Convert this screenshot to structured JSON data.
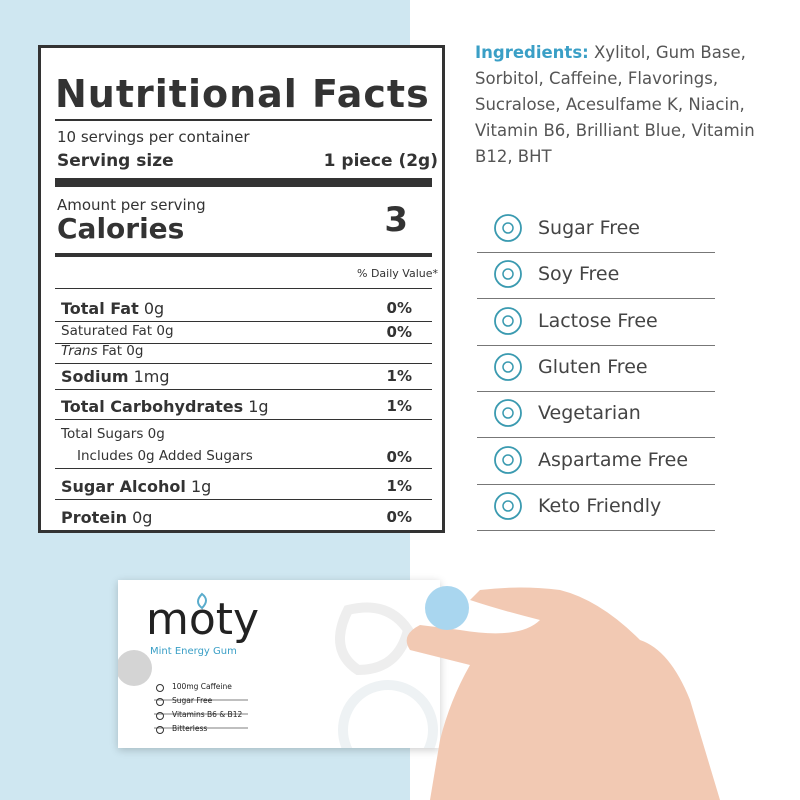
{
  "nutrition": {
    "title": "Nutritional Facts",
    "servings": "10 servings per container",
    "serving_size": {
      "label": "Serving size",
      "value": "1 piece (2g)"
    },
    "amount_per_serving": "Amount per serving",
    "calories": {
      "label": "Calories",
      "value": "3"
    },
    "daily_value_header": "% Daily Value*",
    "rows": [
      {
        "name": "Total Fat",
        "amount": "0g",
        "dv": "0%"
      },
      {
        "name": "Saturated Fat",
        "amount": "0g",
        "dv": "0%"
      },
      {
        "name": "Trans",
        "amount": "Fat 0g"
      },
      {
        "name": "Sodium",
        "amount": "1mg",
        "dv": "1%"
      },
      {
        "name": "Total Carbohydrates",
        "amount": "1g",
        "dv": "1%"
      },
      {
        "name": "Total Sugars",
        "amount": "0g"
      },
      {
        "name": "Includes 0g Added Sugars",
        "dv": "0%"
      },
      {
        "name": "Sugar Alcohol",
        "amount": "1g",
        "dv": "1%"
      },
      {
        "name": "Protein",
        "amount": "0g",
        "dv": "0%"
      }
    ]
  },
  "ingredients": {
    "label": "Ingredients:",
    "text": "Xylitol, Gum Base, Sorbitol, Caffeine, Flavorings, Sucralose, Acesulfame K, Niacin, Vitamin B6, Brilliant Blue, Vitamin B12, BHT"
  },
  "features": [
    "Sugar Free",
    "Soy Free",
    "Lactose Free",
    "Gluten Free",
    "Vegetarian",
    "Aspartame Free",
    "Keto Friendly"
  ],
  "package": {
    "brand": "moty",
    "subtitle": "Mint Energy Gum",
    "features": [
      "100mg Caffeine",
      "Sugar Free",
      "Vitamins B6 & B12",
      "Bitterless"
    ]
  }
}
